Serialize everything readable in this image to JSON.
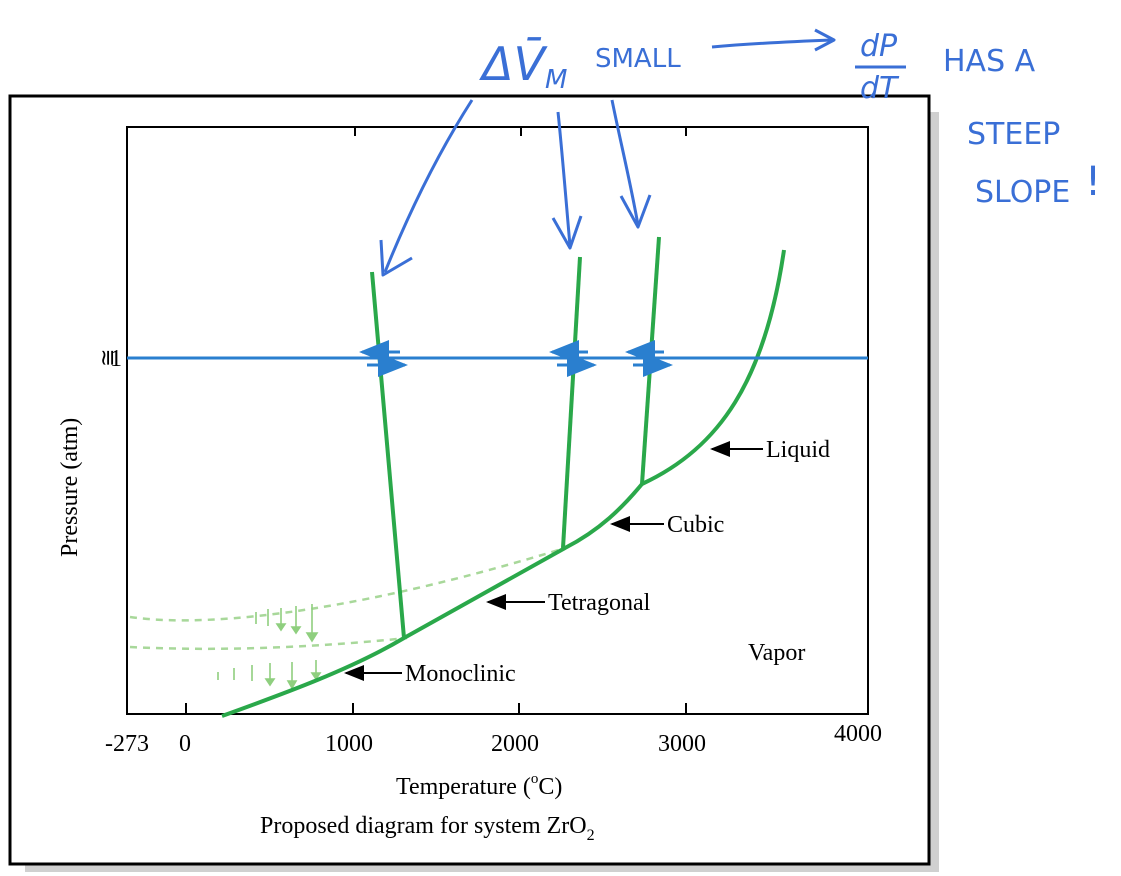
{
  "annotation": {
    "delta_label": "ΔV̄",
    "delta_subscript": "M",
    "small": "SMALL",
    "dp": "dP",
    "dt": "dT",
    "line1": "HAS A",
    "line2": "STEEP",
    "line3": "SLOPE",
    "exclaim": "!",
    "color": "#3a6fd6"
  },
  "diagram": {
    "y_axis_label": "Pressure (atm)",
    "y_tick_symbol": "≅",
    "y_tick_value": "1",
    "x_ticks": [
      "-273",
      "0",
      "1000",
      "2000",
      "3000",
      "4000"
    ],
    "x_label_main": "Temperature (",
    "x_label_sup": "o",
    "x_label_end": "C)",
    "caption_main": "Proposed diagram for system ZrO",
    "caption_sub": "2",
    "region_labels": {
      "liquid": "Liquid",
      "cubic": "Cubic",
      "tetragonal": "Tetragonal",
      "vapor": "Vapor",
      "monoclinic": "Monoclinic"
    },
    "colors": {
      "boundary": "#2aa84a",
      "metastable": "#a8d89a",
      "isobar": "#2a7fcf",
      "frame": "#000000",
      "shadow": "#d0d0d0"
    }
  }
}
